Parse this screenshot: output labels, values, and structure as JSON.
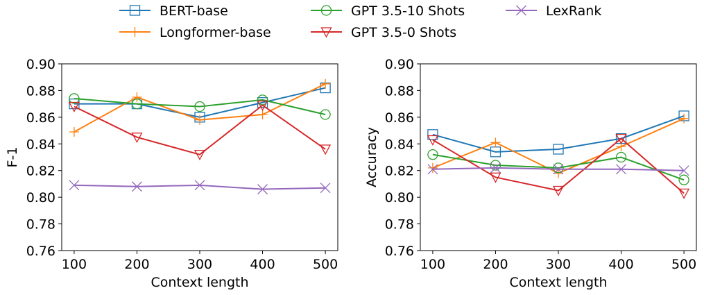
{
  "legend": {
    "placement": "top-center",
    "entries": [
      "BERT-base",
      "Longformer-base",
      "GPT 3.5-10 Shots",
      "GPT 3.5-0 Shots",
      "LexRank"
    ]
  },
  "series_styles": [
    {
      "name": "BERT-base",
      "color": "#1f77b4",
      "marker": "square"
    },
    {
      "name": "Longformer-base",
      "color": "#ff7f0e",
      "marker": "plus"
    },
    {
      "name": "GPT 3.5-10 Shots",
      "color": "#2ca02c",
      "marker": "circle"
    },
    {
      "name": "GPT 3.5-0 Shots",
      "color": "#d62728",
      "marker": "triangle-down"
    },
    {
      "name": "LexRank",
      "color": "#9467bd",
      "marker": "x"
    }
  ],
  "chart_data": [
    {
      "type": "line",
      "title": "",
      "xlabel": "Context length",
      "ylabel": "F-1",
      "x": [
        100,
        200,
        300,
        400,
        500
      ],
      "xticks": [
        "100",
        "200",
        "300",
        "400",
        "500"
      ],
      "yticks": [
        "0.76",
        "0.78",
        "0.80",
        "0.82",
        "0.84",
        "0.86",
        "0.88",
        "0.90"
      ],
      "ylim": [
        0.76,
        0.9
      ],
      "grid": false,
      "series": [
        {
          "name": "BERT-base",
          "values": [
            0.87,
            0.87,
            0.86,
            0.871,
            0.882
          ]
        },
        {
          "name": "Longformer-base",
          "values": [
            0.849,
            0.875,
            0.858,
            0.862,
            0.885
          ]
        },
        {
          "name": "GPT 3.5-10 Shots",
          "values": [
            0.874,
            0.87,
            0.868,
            0.873,
            0.862
          ]
        },
        {
          "name": "GPT 3.5-0 Shots",
          "values": [
            0.868,
            0.845,
            0.832,
            0.869,
            0.836
          ]
        },
        {
          "name": "LexRank",
          "values": [
            0.809,
            0.808,
            0.809,
            0.806,
            0.807
          ]
        }
      ]
    },
    {
      "type": "line",
      "title": "",
      "xlabel": "Context length",
      "ylabel": "Accuracy",
      "x": [
        100,
        200,
        300,
        400,
        500
      ],
      "xticks": [
        "100",
        "200",
        "300",
        "400",
        "500"
      ],
      "yticks": [
        "0.76",
        "0.78",
        "0.80",
        "0.82",
        "0.84",
        "0.86",
        "0.88",
        "0.90"
      ],
      "ylim": [
        0.76,
        0.9
      ],
      "grid": false,
      "series": [
        {
          "name": "BERT-base",
          "values": [
            0.847,
            0.834,
            0.836,
            0.844,
            0.861
          ]
        },
        {
          "name": "Longformer-base",
          "values": [
            0.822,
            0.841,
            0.818,
            0.838,
            0.859
          ]
        },
        {
          "name": "GPT 3.5-10 Shots",
          "values": [
            0.832,
            0.824,
            0.822,
            0.83,
            0.813
          ]
        },
        {
          "name": "GPT 3.5-0 Shots",
          "values": [
            0.843,
            0.815,
            0.805,
            0.844,
            0.803
          ]
        },
        {
          "name": "LexRank",
          "values": [
            0.821,
            0.822,
            0.821,
            0.821,
            0.82
          ]
        }
      ]
    }
  ]
}
